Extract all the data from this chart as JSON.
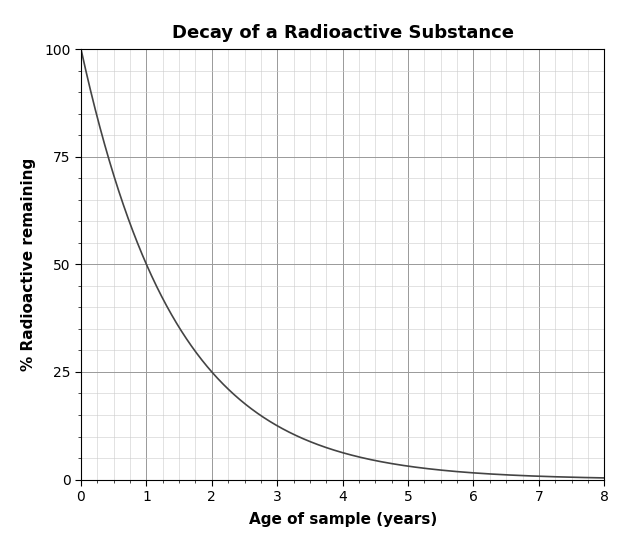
{
  "title": "Decay of a Radioactive Substance",
  "xlabel": "Age of sample (years)",
  "ylabel": "% Radioactive remaining",
  "xlim": [
    0,
    8
  ],
  "ylim": [
    0,
    100
  ],
  "xticks": [
    0,
    1,
    2,
    3,
    4,
    5,
    6,
    7,
    8
  ],
  "yticks": [
    0,
    25,
    50,
    75,
    100
  ],
  "half_life": 1.0,
  "initial_value": 100,
  "line_color": "#444444",
  "line_width": 1.2,
  "grid_major_color": "#999999",
  "grid_minor_color": "#cccccc",
  "background_color": "#ffffff",
  "title_fontsize": 13,
  "label_fontsize": 11,
  "tick_fontsize": 10
}
